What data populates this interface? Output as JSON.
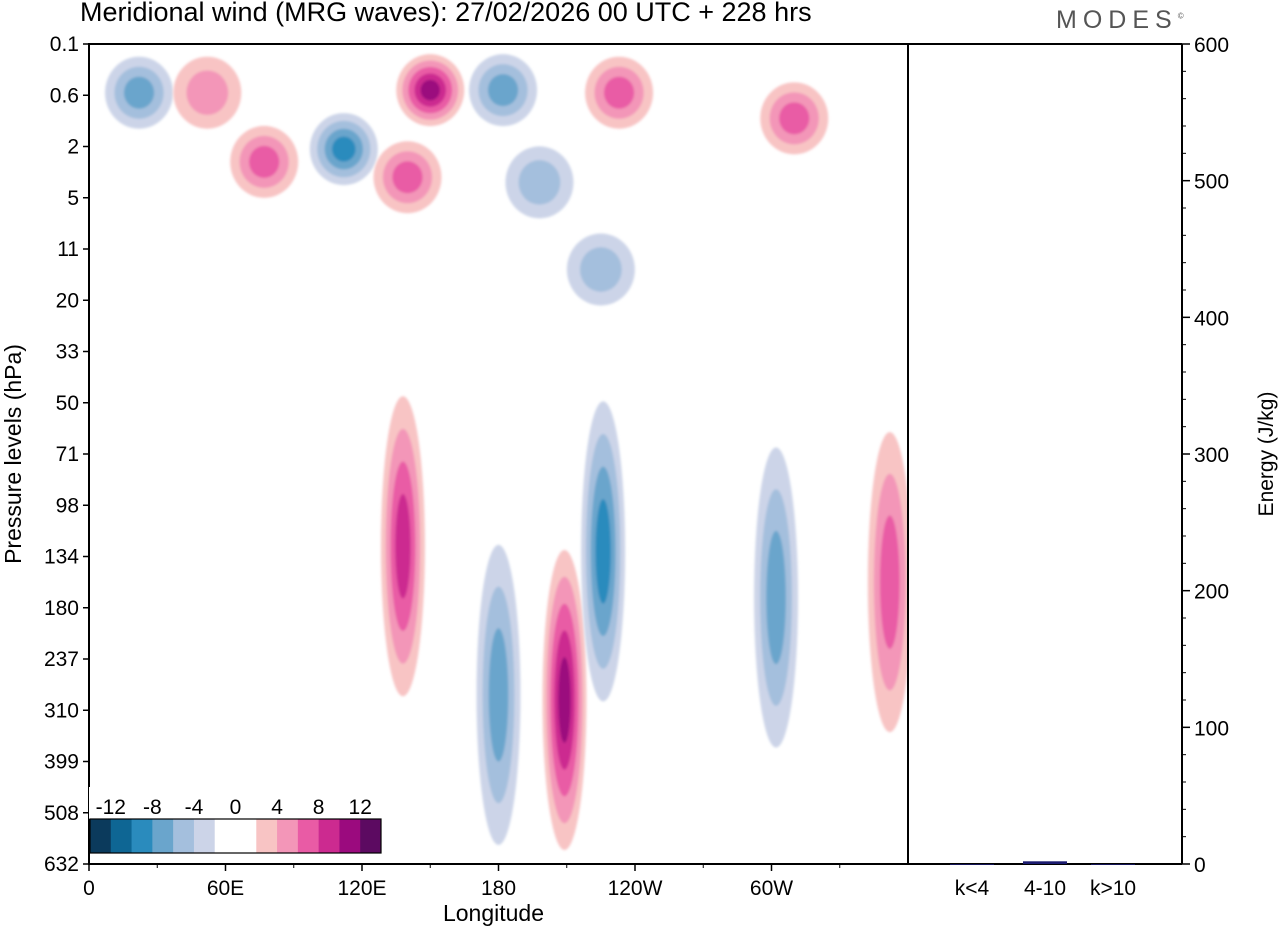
{
  "header": {
    "title": "Meridional wind (MRG waves):  27/02/2026  00 UTC  + 228 hrs",
    "brand": "MODES",
    "brand_mark": "©"
  },
  "chart_data": [
    {
      "type": "heatmap",
      "title": "Meridional wind (MRG waves):  27/02/2026  00 UTC  + 228 hrs",
      "xlabel": "Longitude",
      "ylabel": "Pressure levels (hPa)",
      "x_ticks": [
        "0",
        "60E",
        "120E",
        "180",
        "120W",
        "60W"
      ],
      "x_tick_degrees": [
        0,
        60,
        120,
        180,
        240,
        300
      ],
      "xlim": [
        0,
        360
      ],
      "y_ticks": [
        "0.1",
        "0.6",
        "2",
        "5",
        "11",
        "20",
        "33",
        "50",
        "71",
        "98",
        "134",
        "180",
        "237",
        "310",
        "399",
        "508",
        "632"
      ],
      "colorbar": {
        "labels": [
          "-12",
          "-8",
          "-4",
          "0",
          "4",
          "8",
          "12"
        ],
        "colors": [
          "#0b3a5c",
          "#0e6694",
          "#2a8bbd",
          "#6aa5cc",
          "#a4bfdd",
          "#ccd4e8",
          "#ffffff",
          "#ffffff",
          "#f8c4c4",
          "#f396b8",
          "#e95ba5",
          "#cc2a90",
          "#9b0a7e",
          "#5c0a61"
        ]
      },
      "contour_features": [
        {
          "sign": "neg",
          "lon": 22,
          "level_index": 0.95,
          "intensity": 3
        },
        {
          "sign": "pos",
          "lon": 52,
          "level_index": 0.95,
          "intensity": 2
        },
        {
          "sign": "neg",
          "lon": 112,
          "level_index": 2.05,
          "intensity": 4
        },
        {
          "sign": "pos",
          "lon": 77,
          "level_index": 2.3,
          "intensity": 3
        },
        {
          "sign": "pos",
          "lon": 150,
          "level_index": 0.9,
          "intensity": 5
        },
        {
          "sign": "pos",
          "lon": 140,
          "level_index": 2.6,
          "intensity": 3
        },
        {
          "sign": "neg",
          "lon": 182,
          "level_index": 0.9,
          "intensity": 3
        },
        {
          "sign": "pos",
          "lon": 233,
          "level_index": 0.95,
          "intensity": 3
        },
        {
          "sign": "pos",
          "lon": 310,
          "level_index": 1.45,
          "intensity": 3
        },
        {
          "sign": "neg",
          "lon": 198,
          "level_index": 2.7,
          "intensity": 2
        },
        {
          "sign": "neg",
          "lon": 225,
          "level_index": 4.4,
          "intensity": 2
        },
        {
          "sign": "pos",
          "lon": 138,
          "level_index": 9.8,
          "intensity": 4
        },
        {
          "sign": "neg",
          "lon": 180,
          "level_index": 12.7,
          "intensity": 3
        },
        {
          "sign": "pos",
          "lon": 209,
          "level_index": 12.8,
          "intensity": 5
        },
        {
          "sign": "neg",
          "lon": 226,
          "level_index": 9.9,
          "intensity": 4
        },
        {
          "sign": "neg",
          "lon": 302,
          "level_index": 10.8,
          "intensity": 3
        },
        {
          "sign": "pos",
          "lon": 352,
          "level_index": 10.5,
          "intensity": 3
        }
      ]
    },
    {
      "type": "bar",
      "categories": [
        "k<4",
        "4-10",
        "k>10"
      ],
      "values": [
        0,
        2,
        0
      ],
      "ylabel": "Energy (J/kg)",
      "ylim": [
        0,
        600
      ],
      "y_ticks": [
        "0",
        "100",
        "200",
        "300",
        "400",
        "500",
        "600"
      ],
      "bar_color": "#1a1a6e"
    }
  ]
}
